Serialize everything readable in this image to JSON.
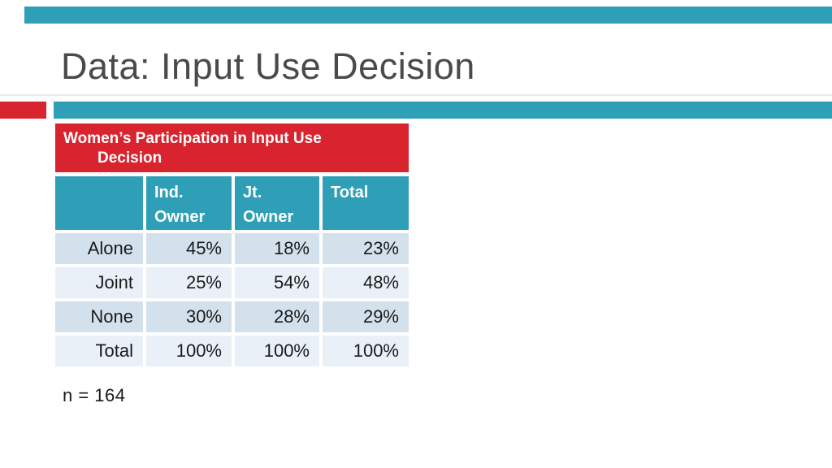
{
  "slide": {
    "title": "Data: Input Use Decision",
    "note": "n = 164"
  },
  "table_card": {
    "title_line1": "Women’s Participation in Input Use",
    "title_line2": "Decision",
    "columns": [
      "",
      "Ind. Owner",
      "Jt. Owner",
      "Total"
    ],
    "rows": [
      {
        "label": "Alone",
        "values": [
          "45%",
          "18%",
          "23%"
        ]
      },
      {
        "label": "Joint",
        "values": [
          "25%",
          "54%",
          "48%"
        ]
      },
      {
        "label": "None",
        "values": [
          "30%",
          "28%",
          "29%"
        ]
      },
      {
        "label": "Total",
        "values": [
          "100%",
          "100%",
          "100%"
        ]
      }
    ]
  },
  "colors": {
    "teal": "#2E9FB7",
    "red": "#D9232E",
    "row_dark": "#D3E1ED",
    "row_light": "#E9F0F7",
    "title_gray": "#4A4A4A",
    "text_dark": "#1A1A1A"
  },
  "chart_data": {
    "type": "table",
    "title": "Women’s Participation in Input Use Decision",
    "columns": [
      "",
      "Ind. Owner",
      "Jt. Owner",
      "Total"
    ],
    "rows": [
      [
        "Alone",
        "45%",
        "18%",
        "23%"
      ],
      [
        "Joint",
        "25%",
        "54%",
        "48%"
      ],
      [
        "None",
        "30%",
        "28%",
        "29%"
      ],
      [
        "Total",
        "100%",
        "100%",
        "100%"
      ]
    ],
    "annotation": "n = 164"
  }
}
